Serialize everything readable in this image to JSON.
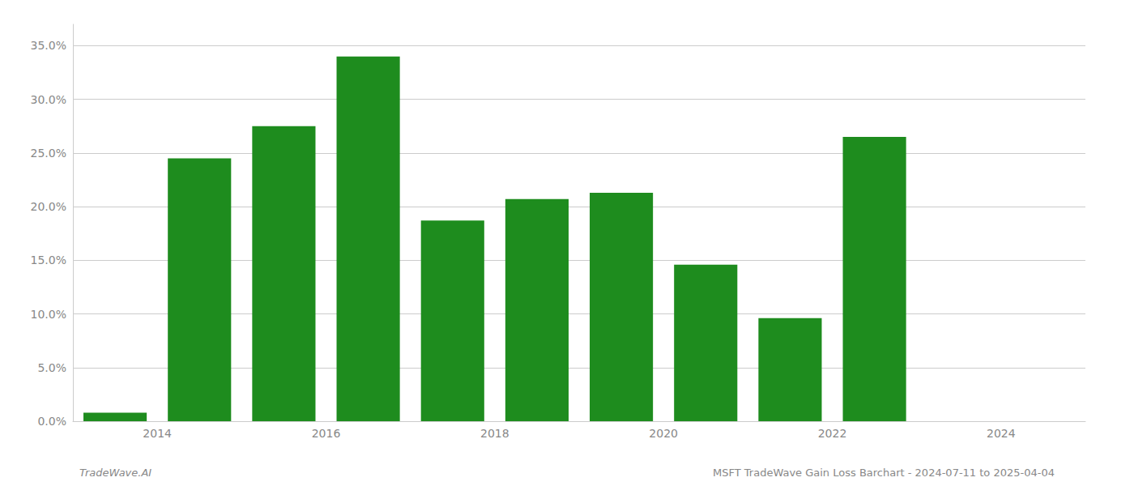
{
  "chart_data": {
    "type": "bar",
    "x": [
      2013.5,
      2014.5,
      2015.5,
      2016.5,
      2017.5,
      2018.5,
      2019.5,
      2020.5,
      2021.5,
      2022.5
    ],
    "values": [
      0.008,
      0.245,
      0.275,
      0.34,
      0.187,
      0.207,
      0.213,
      0.146,
      0.096,
      0.265
    ],
    "color": "#1e8c1e",
    "xlim": [
      2013.0,
      2025.0
    ],
    "xticks": [
      2014,
      2016,
      2018,
      2020,
      2022,
      2024
    ],
    "ylim": [
      0,
      0.37
    ],
    "yticks": [
      {
        "value": 0.0,
        "label": "0.0%"
      },
      {
        "value": 0.05,
        "label": "5.0%"
      },
      {
        "value": 0.1,
        "label": "10.0%"
      },
      {
        "value": 0.15,
        "label": "15.0%"
      },
      {
        "value": 0.2,
        "label": "20.0%"
      },
      {
        "value": 0.25,
        "label": "25.0%"
      },
      {
        "value": 0.3,
        "label": "30.0%"
      },
      {
        "value": 0.35,
        "label": "35.0%"
      }
    ],
    "grid": true,
    "annotations": [
      "TradeWave.AI",
      "MSFT TradeWave Gain Loss Barchart - 2024-07-11 to 2025-04-04"
    ]
  }
}
